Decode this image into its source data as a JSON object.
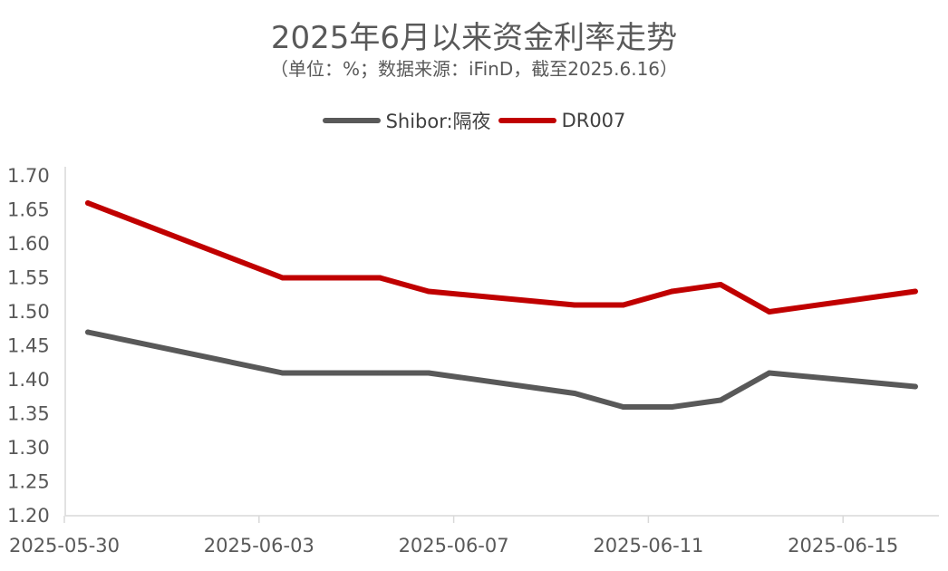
{
  "chart_data": {
    "type": "line",
    "title": "2025年6月以来资金利率走势",
    "subtitle": "（单位：%；数据来源：iFinD，截至2025.6.16）",
    "x": [
      "2025-05-30",
      "2025-06-03",
      "2025-06-04",
      "2025-06-05",
      "2025-06-06",
      "2025-06-09",
      "2025-06-10",
      "2025-06-11",
      "2025-06-12",
      "2025-06-13",
      "2025-06-16"
    ],
    "x_tick_labels": [
      "2025-05-30",
      "2025-06-03",
      "2025-06-07",
      "2025-06-11",
      "2025-06-15"
    ],
    "series": [
      {
        "name": "Shibor:隔夜",
        "color": "#595959",
        "values": [
          1.47,
          1.41,
          1.41,
          1.41,
          1.41,
          1.38,
          1.36,
          1.36,
          1.37,
          1.41,
          1.39
        ]
      },
      {
        "name": "DR007",
        "color": "#C00000",
        "values": [
          1.66,
          1.55,
          1.55,
          1.55,
          1.53,
          1.51,
          1.51,
          1.53,
          1.54,
          1.5,
          1.53
        ]
      }
    ],
    "ylim": [
      1.2,
      1.7
    ],
    "y_ticks": [
      "1.20",
      "1.25",
      "1.30",
      "1.35",
      "1.40",
      "1.45",
      "1.50",
      "1.55",
      "1.60",
      "1.65",
      "1.70"
    ],
    "grid": false,
    "legend": "top-center"
  }
}
